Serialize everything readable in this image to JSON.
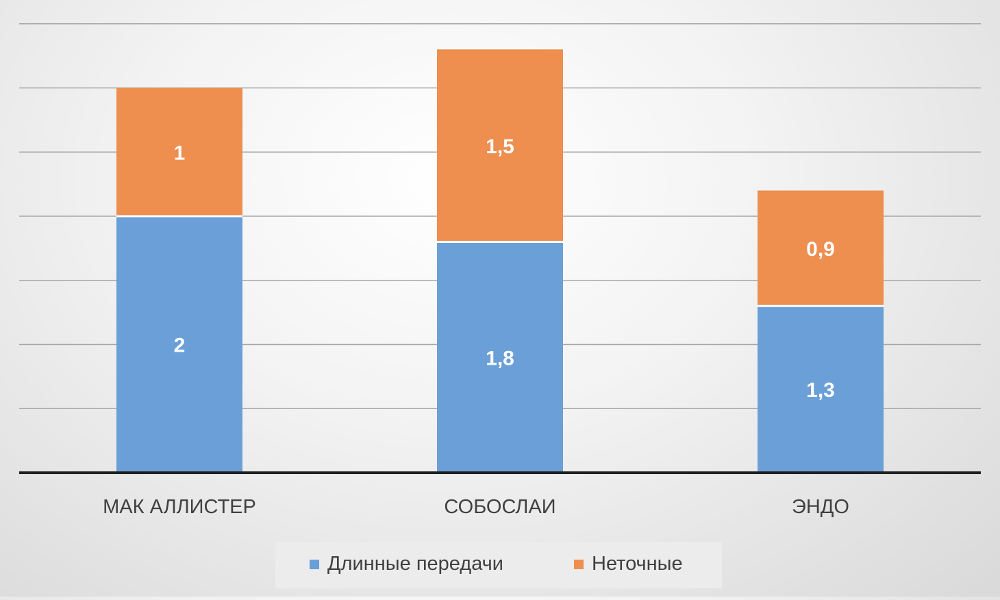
{
  "chart_data": {
    "type": "bar",
    "stacked": true,
    "title": "",
    "xlabel": "",
    "ylabel": "",
    "categories": [
      "МАК АЛЛИСТЕР",
      "СОБОСЛАИ",
      "ЭНДО"
    ],
    "series": [
      {
        "name": "Длинные передачи",
        "values": [
          2,
          1.8,
          1.3
        ],
        "labels": [
          "2",
          "1,8",
          "1,3"
        ],
        "color": "#6a9fd8"
      },
      {
        "name": "Неточные",
        "values": [
          1,
          1.5,
          0.9
        ],
        "labels": [
          "1",
          "1,5",
          "0,9"
        ],
        "color": "#ee8e4f"
      }
    ],
    "ylim": [
      0,
      3.5
    ],
    "grid": true,
    "y_tick_labels_visible": false,
    "legend": "bottom",
    "colors": {
      "gridline": "#a6a6a6",
      "axis": "#1f1f1f",
      "label_text": "#404040",
      "data_label": "#ffffff",
      "legend_background": "#ececec"
    }
  }
}
